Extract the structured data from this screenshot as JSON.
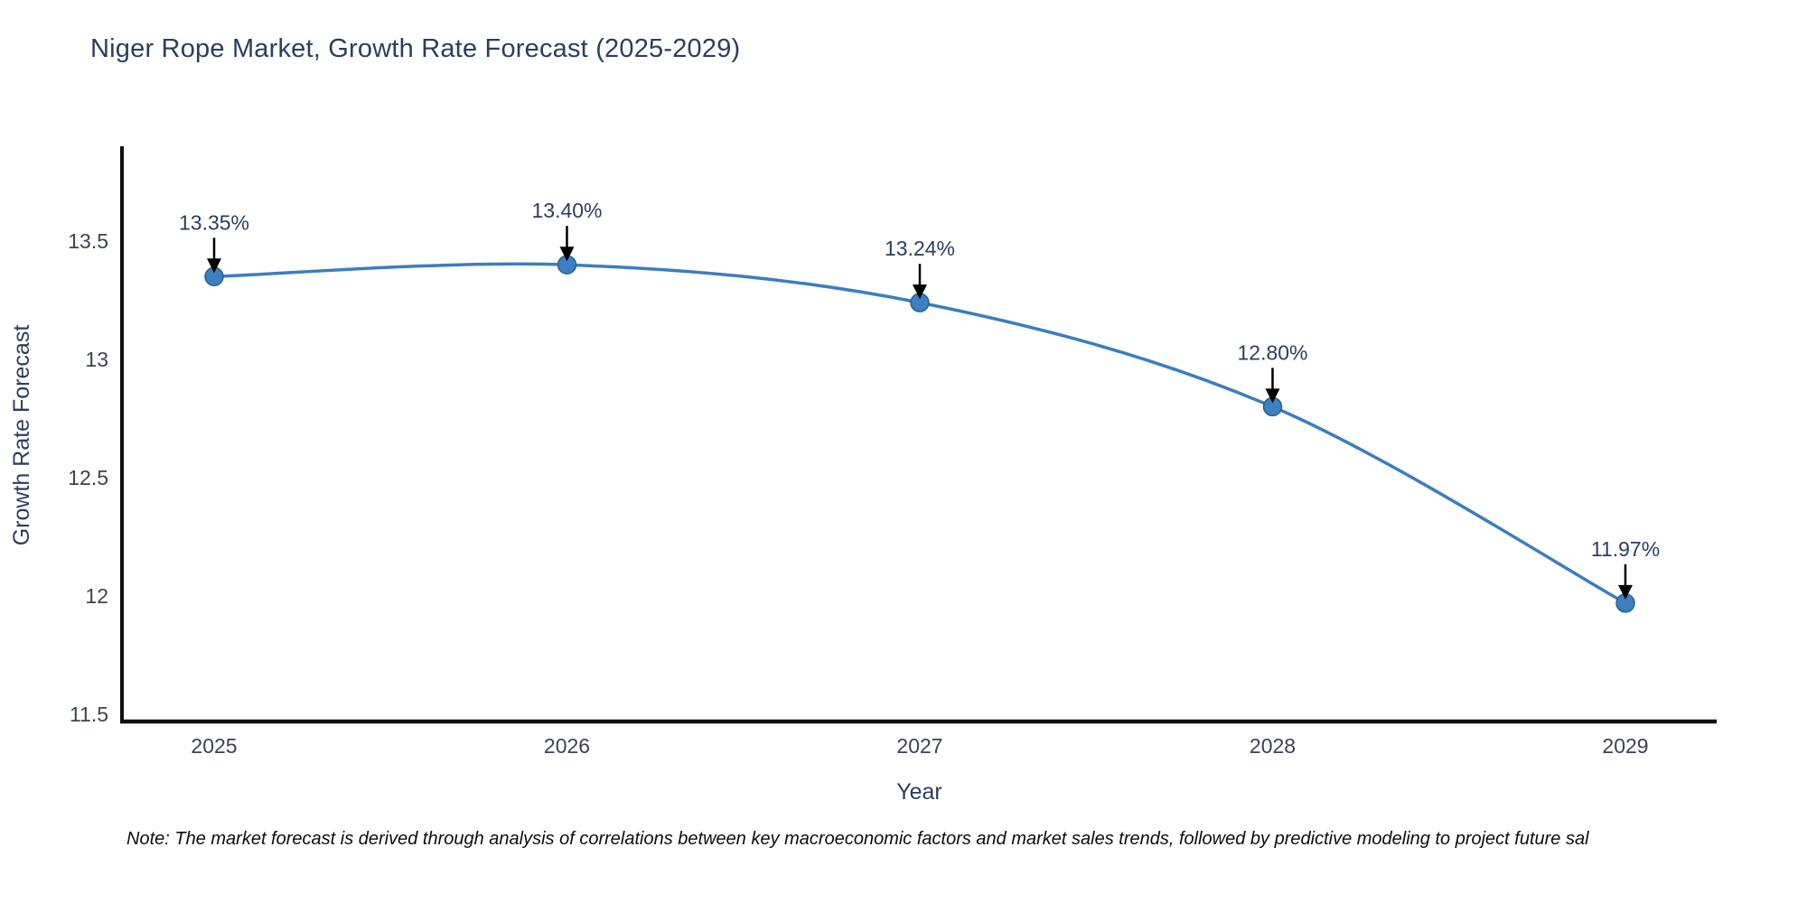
{
  "chart_data": {
    "type": "line",
    "title": "Niger Rope Market, Growth Rate Forecast (2025-2029)",
    "xlabel": "Year",
    "ylabel": "Growth Rate Forecast",
    "categories": [
      "2025",
      "2026",
      "2027",
      "2028",
      "2029"
    ],
    "x": [
      2025,
      2026,
      2027,
      2028,
      2029
    ],
    "series": [
      {
        "name": "Growth Rate Forecast",
        "values": [
          13.35,
          13.4,
          13.24,
          12.8,
          11.97
        ]
      }
    ],
    "point_labels": [
      "13.35%",
      "13.40%",
      "13.24%",
      "12.80%",
      "11.97%"
    ],
    "yticks": [
      11.5,
      12,
      12.5,
      13,
      13.5
    ],
    "ytick_labels": [
      "11.5",
      "12",
      "12.5",
      "13",
      "13.5"
    ],
    "ylim": [
      11.47,
      13.9
    ],
    "grid": false,
    "legend_position": "none",
    "line_shape": "spline",
    "colors": {
      "line": "#3a7ebf",
      "marker_fill": "#3d7fc0",
      "marker_edge": "#29648f",
      "axis": "#0f0f0f",
      "tick_text": "#3c4353",
      "label_text": "#2a3f5f",
      "annotation_arrow": "#000000"
    }
  },
  "note": "Note: The market forecast is derived through analysis of correlations between key macroeconomic factors and market sales trends, followed by predictive modeling to project future sal"
}
